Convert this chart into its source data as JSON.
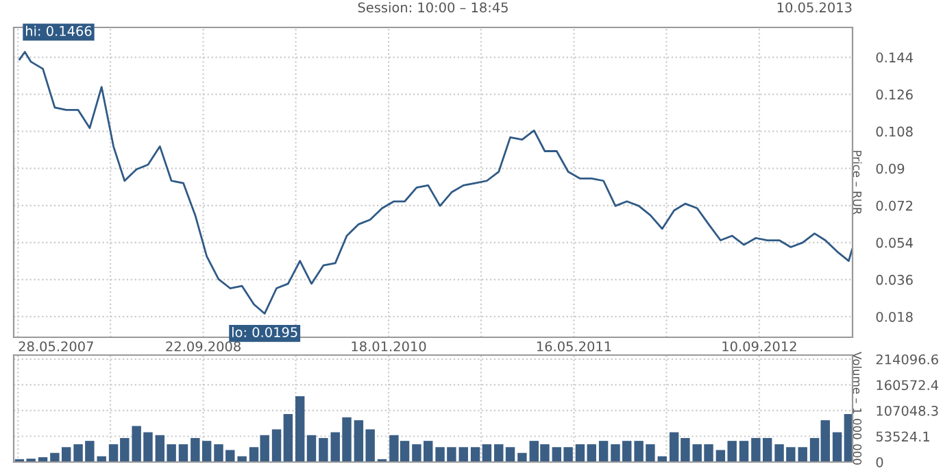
{
  "chart_data": [
    {
      "type": "line",
      "ylabel": "Price – RUR",
      "color": "#2f5a86",
      "grid": true,
      "annotations": [
        "Session: 10:00 – 18:45",
        "10.05.2013",
        {
          "text": "hi: 0.1466",
          "x": "2007-06-15",
          "y": 0.1466
        },
        {
          "text": "lo: 0.0195",
          "x": "2009-03-01",
          "y": 0.0195
        }
      ],
      "x": [
        "2007-06-01",
        "2007-06-15",
        "2007-07-01",
        "2007-08-01",
        "2007-09-01",
        "2007-10-01",
        "2007-11-01",
        "2007-12-01",
        "2008-01-01",
        "2008-02-01",
        "2008-03-01",
        "2008-04-01",
        "2008-05-01",
        "2008-06-01",
        "2008-07-01",
        "2008-08-01",
        "2008-09-01",
        "2008-10-01",
        "2008-11-01",
        "2008-12-01",
        "2009-01-01",
        "2009-02-01",
        "2009-03-01",
        "2009-04-01",
        "2009-05-01",
        "2009-06-01",
        "2009-07-01",
        "2009-08-01",
        "2009-09-01",
        "2009-10-01",
        "2009-11-01",
        "2009-12-01",
        "2010-01-01",
        "2010-02-01",
        "2010-03-01",
        "2010-04-01",
        "2010-05-01",
        "2010-06-01",
        "2010-07-01",
        "2010-08-01",
        "2010-09-01",
        "2010-10-01",
        "2010-11-01",
        "2010-12-01",
        "2011-01-01",
        "2011-02-01",
        "2011-03-01",
        "2011-04-01",
        "2011-05-01",
        "2011-06-01",
        "2011-07-01",
        "2011-08-01",
        "2011-09-01",
        "2011-10-01",
        "2011-11-01",
        "2011-12-01",
        "2012-01-01",
        "2012-02-01",
        "2012-03-01",
        "2012-04-01",
        "2012-05-01",
        "2012-06-01",
        "2012-07-01",
        "2012-08-01",
        "2012-09-01",
        "2012-10-01",
        "2012-11-01",
        "2012-12-01",
        "2013-01-01",
        "2013-02-01",
        "2013-03-01",
        "2013-04-01",
        "2013-05-01",
        "2013-05-10"
      ],
      "values": [
        0.1429,
        0.1466,
        0.1418,
        0.1384,
        0.1196,
        0.1184,
        0.1184,
        0.1096,
        0.1296,
        0.1007,
        0.084,
        0.0896,
        0.0918,
        0.1007,
        0.084,
        0.0829,
        0.0673,
        0.0473,
        0.0362,
        0.0318,
        0.0329,
        0.024,
        0.0195,
        0.0318,
        0.034,
        0.0451,
        0.034,
        0.0429,
        0.044,
        0.0573,
        0.0629,
        0.0651,
        0.0707,
        0.074,
        0.074,
        0.0807,
        0.0818,
        0.0718,
        0.0784,
        0.0818,
        0.0829,
        0.084,
        0.0884,
        0.1051,
        0.104,
        0.1084,
        0.0984,
        0.0984,
        0.0884,
        0.0851,
        0.0851,
        0.084,
        0.0718,
        0.074,
        0.0718,
        0.0673,
        0.0607,
        0.0696,
        0.0729,
        0.0707,
        0.0629,
        0.0551,
        0.0573,
        0.0529,
        0.0562,
        0.0551,
        0.0551,
        0.0518,
        0.054,
        0.0584,
        0.0551,
        0.0496,
        0.0451,
        0.0508
      ],
      "xlim": [
        "2007-05-17",
        "2013-05-11"
      ],
      "xticks": [
        {
          "value": "2007-05-28",
          "label": "28.05.2007"
        },
        {
          "value": "2008-01-24",
          "label": null
        },
        {
          "value": "2008-09-22",
          "label": "22.09.2008"
        },
        {
          "value": "2009-05-21",
          "label": null
        },
        {
          "value": "2010-01-18",
          "label": "18.01.2010"
        },
        {
          "value": "2010-09-16",
          "label": null
        },
        {
          "value": "2011-05-16",
          "label": "16.05.2011"
        },
        {
          "value": "2012-01-12",
          "label": null
        },
        {
          "value": "2012-09-10",
          "label": "10.09.2012"
        }
      ],
      "ylim": [
        0.008,
        0.1585
      ],
      "yticks": [
        0.018,
        0.036,
        0.054,
        0.072,
        0.09,
        0.108,
        0.126,
        0.144
      ]
    },
    {
      "type": "bar",
      "ylabel": "Volume – 1 000 000",
      "color": "#3b5e84",
      "grid": true,
      "tick_labels": "y",
      "x": [
        "2007-06-01",
        "2007-07-01",
        "2007-08-01",
        "2007-09-01",
        "2007-10-01",
        "2007-11-01",
        "2007-12-01",
        "2008-01-01",
        "2008-02-01",
        "2008-03-01",
        "2008-04-01",
        "2008-05-01",
        "2008-06-01",
        "2008-07-01",
        "2008-08-01",
        "2008-09-01",
        "2008-10-01",
        "2008-11-01",
        "2008-12-01",
        "2009-01-01",
        "2009-02-01",
        "2009-03-01",
        "2009-04-01",
        "2009-05-01",
        "2009-06-01",
        "2009-07-01",
        "2009-08-01",
        "2009-09-01",
        "2009-10-01",
        "2009-11-01",
        "2009-12-01",
        "2010-01-01",
        "2010-02-01",
        "2010-03-01",
        "2010-04-01",
        "2010-05-01",
        "2010-06-01",
        "2010-07-01",
        "2010-08-01",
        "2010-09-01",
        "2010-10-01",
        "2010-11-01",
        "2010-12-01",
        "2011-01-01",
        "2011-02-01",
        "2011-03-01",
        "2011-04-01",
        "2011-05-01",
        "2011-06-01",
        "2011-07-01",
        "2011-08-01",
        "2011-09-01",
        "2011-10-01",
        "2011-11-01",
        "2011-12-01",
        "2012-01-01",
        "2012-02-01",
        "2012-03-01",
        "2012-04-01",
        "2012-05-01",
        "2012-06-01",
        "2012-07-01",
        "2012-08-01",
        "2012-09-01",
        "2012-10-01",
        "2012-11-01",
        "2012-12-01",
        "2013-01-01",
        "2013-02-01",
        "2013-03-01",
        "2013-04-01",
        "2013-05-01"
      ],
      "values": [
        6000,
        7000,
        10000,
        19000,
        31000,
        37000,
        44000,
        12000,
        37000,
        50000,
        75000,
        62000,
        56000,
        37000,
        37000,
        50000,
        44000,
        37000,
        25000,
        12000,
        31000,
        56000,
        68000,
        100000,
        137000,
        56000,
        50000,
        62000,
        93000,
        87000,
        68000,
        6000,
        56000,
        44000,
        37000,
        44000,
        31000,
        31000,
        31000,
        31000,
        37000,
        37000,
        31000,
        19000,
        44000,
        37000,
        31000,
        31000,
        37000,
        37000,
        44000,
        37000,
        44000,
        44000,
        37000,
        12000,
        62000,
        50000,
        37000,
        37000,
        25000,
        44000,
        44000,
        50000,
        50000,
        37000,
        31000,
        31000,
        50000,
        87000,
        62000,
        100000
      ],
      "xlim": [
        "2007-05-17",
        "2013-05-11"
      ],
      "xticks": [
        "2007-05-28",
        "2008-01-24",
        "2008-09-22",
        "2009-05-21",
        "2010-01-18",
        "2010-09-16",
        "2011-05-16",
        "2012-01-12",
        "2012-09-10"
      ],
      "ylim": [
        0,
        222600
      ],
      "yticks": [
        0,
        53524.1,
        107048.3,
        160572.4,
        214096.6
      ]
    }
  ]
}
